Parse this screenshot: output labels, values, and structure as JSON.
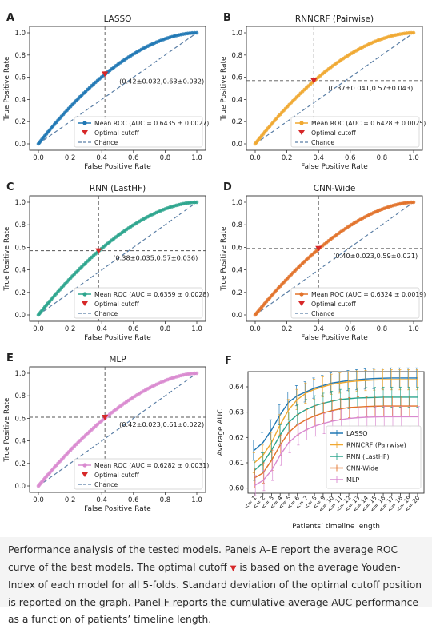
{
  "caption": {
    "before_marker": "Performance analysis of the tested models. Panels A–E report the average ROC curve of the best models. The optimal cutoff ",
    "marker_glyph": "▼",
    "after_marker": " is based on the average Youden-Index of each model for all 5-folds. Standard deviation of the optimal cutoff position is reported on the graph. Panel F reports the cumulative average AUC performance as a function of patients’ timeline length."
  },
  "chart_data": [
    {
      "type": "line",
      "panel_letter": "A",
      "title": "LASSO",
      "xlabel": "False Positive Rate",
      "ylabel": "True Positive Rate",
      "xlim": [
        0,
        1
      ],
      "ylim": [
        0,
        1
      ],
      "xticks": [
        "0.0",
        "0.2",
        "0.4",
        "0.6",
        "0.8",
        "1.0"
      ],
      "yticks": [
        "0.0",
        "0.2",
        "0.4",
        "0.6",
        "0.8",
        "1.0"
      ],
      "color": "#1f77b4",
      "auc": 0.6435,
      "cutoff": {
        "fpr": 0.42,
        "tpr": 0.63,
        "label": "(0.42±0.032,0.63±0.032)"
      },
      "legend": [
        "Mean ROC (AUC = 0.6435 ± 0.0027)",
        "Optimal cutoff",
        "Chance"
      ],
      "legend_position": "lower-right"
    },
    {
      "type": "line",
      "panel_letter": "B",
      "title": "RNNCRF (Pairwise)",
      "xlabel": "False Positive Rate",
      "ylabel": "True Positive Rate",
      "xlim": [
        0,
        1
      ],
      "ylim": [
        0,
        1
      ],
      "xticks": [
        "0.0",
        "0.2",
        "0.4",
        "0.6",
        "0.8",
        "1.0"
      ],
      "yticks": [
        "0.0",
        "0.2",
        "0.4",
        "0.6",
        "0.8",
        "1.0"
      ],
      "color": "#f0a830",
      "auc": 0.6428,
      "cutoff": {
        "fpr": 0.37,
        "tpr": 0.57,
        "label": "(0.37±0.041,0.57±0.043)"
      },
      "legend": [
        "Mean ROC (AUC = 0.6428 ± 0.0025)",
        "Optimal cutoff",
        "Chance"
      ],
      "legend_position": "lower-right"
    },
    {
      "type": "line",
      "panel_letter": "C",
      "title": "RNN (LastHF)",
      "xlabel": "False Positive Rate",
      "ylabel": "True Positive Rate",
      "xlim": [
        0,
        1
      ],
      "ylim": [
        0,
        1
      ],
      "xticks": [
        "0.0",
        "0.2",
        "0.4",
        "0.6",
        "0.8",
        "1.0"
      ],
      "yticks": [
        "0.0",
        "0.2",
        "0.4",
        "0.6",
        "0.8",
        "1.0"
      ],
      "color": "#2ca58d",
      "auc": 0.6359,
      "cutoff": {
        "fpr": 0.38,
        "tpr": 0.57,
        "label": "(0.38±0.035,0.57±0.036)"
      },
      "legend": [
        "Mean ROC (AUC = 0.6359 ± 0.0028)",
        "Optimal cutoff",
        "Chance"
      ],
      "legend_position": "lower-right"
    },
    {
      "type": "line",
      "panel_letter": "D",
      "title": "CNN-Wide",
      "xlabel": "False Positive Rate",
      "ylabel": "True Positive Rate",
      "xlim": [
        0,
        1
      ],
      "ylim": [
        0,
        1
      ],
      "xticks": [
        "0.0",
        "0.2",
        "0.4",
        "0.6",
        "0.8",
        "1.0"
      ],
      "yticks": [
        "0.0",
        "0.2",
        "0.4",
        "0.6",
        "0.8",
        "1.0"
      ],
      "color": "#e2722a",
      "auc": 0.6324,
      "cutoff": {
        "fpr": 0.4,
        "tpr": 0.59,
        "label": "(0.40±0.023,0.59±0.021)"
      },
      "legend": [
        "Mean ROC (AUC = 0.6324 ± 0.0019)",
        "Optimal cutoff",
        "Chance"
      ],
      "legend_position": "lower-right"
    },
    {
      "type": "line",
      "panel_letter": "E",
      "title": "MLP",
      "xlabel": "False Positive Rate",
      "ylabel": "True Positive Rate",
      "xlim": [
        0,
        1
      ],
      "ylim": [
        0,
        1
      ],
      "xticks": [
        "0.0",
        "0.2",
        "0.4",
        "0.6",
        "0.8",
        "1.0"
      ],
      "yticks": [
        "0.0",
        "0.2",
        "0.4",
        "0.6",
        "0.8",
        "1.0"
      ],
      "color": "#d98ad0",
      "auc": 0.6282,
      "cutoff": {
        "fpr": 0.42,
        "tpr": 0.61,
        "label": "(0.42±0.023,0.61±0.022)"
      },
      "legend": [
        "Mean ROC (AUC = 0.6282 ± 0.0031)",
        "Optimal cutoff",
        "Chance"
      ],
      "legend_position": "lower-right"
    },
    {
      "type": "line",
      "panel_letter": "F",
      "title": "",
      "xlabel": "Patients’ timeline length",
      "ylabel": "Average AUC",
      "ylim": [
        0.598,
        0.646
      ],
      "yticks": [
        "0.60",
        "0.61",
        "0.62",
        "0.63",
        "0.64"
      ],
      "categories": [
        "<= 1",
        "<= 2",
        "<= 3",
        "<= 4",
        "<= 5",
        "<= 6",
        "<= 7",
        "<= 8",
        "<= 9",
        "<= 10",
        "<= 11",
        "<= 12",
        "<= 13",
        "<= 14",
        "<= 15",
        "<= 16",
        "<= 17",
        "<= 18",
        "<= 19",
        "<= 20"
      ],
      "error_bar_halfwidth": 0.004,
      "legend_position": "lower-right",
      "series": [
        {
          "name": "LASSO",
          "color": "#1f77b4",
          "values": [
            0.615,
            0.618,
            0.623,
            0.629,
            0.634,
            0.6365,
            0.638,
            0.6395,
            0.6405,
            0.6415,
            0.642,
            0.6425,
            0.6428,
            0.6431,
            0.6433,
            0.6434,
            0.6435,
            0.6435,
            0.6435,
            0.6435
          ]
        },
        {
          "name": "RNNCRF (Pairwise)",
          "color": "#f0a830",
          "values": [
            0.61,
            0.613,
            0.618,
            0.625,
            0.631,
            0.635,
            0.6375,
            0.639,
            0.64,
            0.641,
            0.6415,
            0.642,
            0.6423,
            0.6425,
            0.6427,
            0.6428,
            0.6428,
            0.6428,
            0.6428,
            0.6428
          ]
        },
        {
          "name": "RNN (LastHF)",
          "color": "#2ca58d",
          "values": [
            0.607,
            0.61,
            0.615,
            0.621,
            0.626,
            0.629,
            0.631,
            0.6325,
            0.6335,
            0.6343,
            0.635,
            0.6353,
            0.6356,
            0.6357,
            0.6358,
            0.6359,
            0.6359,
            0.6359,
            0.6359,
            0.6359
          ]
        },
        {
          "name": "CNN-Wide",
          "color": "#e2722a",
          "values": [
            0.604,
            0.606,
            0.611,
            0.617,
            0.622,
            0.625,
            0.627,
            0.6285,
            0.6297,
            0.6306,
            0.6313,
            0.6318,
            0.632,
            0.6322,
            0.6323,
            0.6324,
            0.6324,
            0.6324,
            0.6324,
            0.6324
          ]
        },
        {
          "name": "MLP",
          "color": "#d98ad0",
          "values": [
            0.601,
            0.603,
            0.607,
            0.613,
            0.618,
            0.621,
            0.623,
            0.6245,
            0.6255,
            0.6264,
            0.627,
            0.6275,
            0.6278,
            0.628,
            0.6281,
            0.6282,
            0.6282,
            0.6282,
            0.6282,
            0.6282
          ]
        }
      ]
    }
  ]
}
